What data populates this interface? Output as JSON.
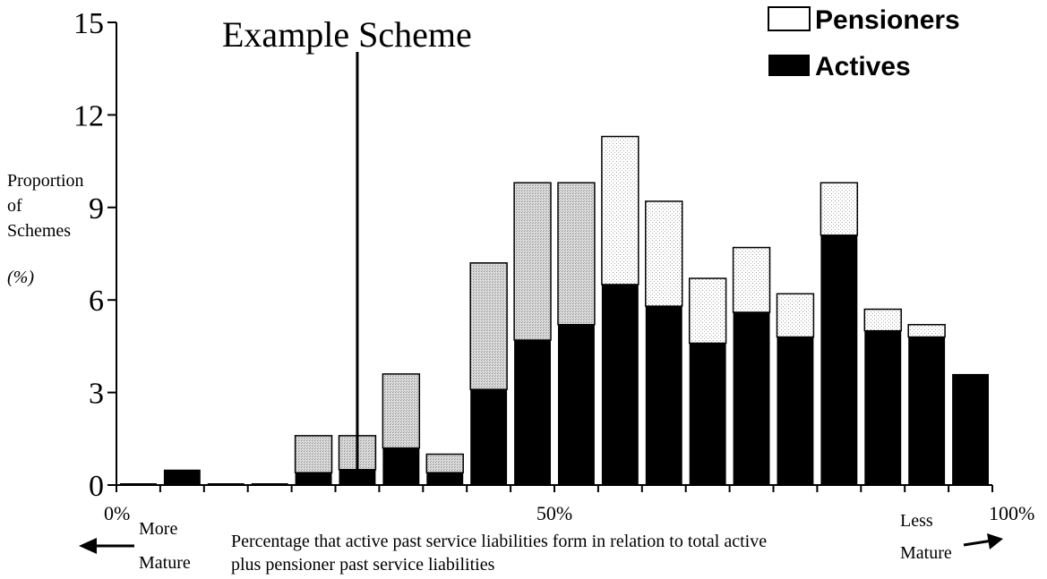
{
  "chart_data": {
    "type": "bar",
    "stacked": true,
    "annotation": "Example Scheme",
    "ylabel": [
      "Proportion",
      "of",
      "Schemes",
      "(%)"
    ],
    "xlabel": [
      "Percentage that active past service liabilities form in relation to total active",
      "plus pensioner past service liabilities"
    ],
    "ylim": [
      0,
      15
    ],
    "yticks": [
      0,
      3,
      6,
      9,
      12,
      15
    ],
    "xlim": [
      0,
      100
    ],
    "xtick_labels": [
      {
        "value": 0,
        "label": "0%"
      },
      {
        "value": 50,
        "label": "50%"
      },
      {
        "value": 100,
        "label": "100%"
      }
    ],
    "left_note": [
      "More",
      "Mature"
    ],
    "right_note": [
      "Less",
      "Mature"
    ],
    "legend_position": "top-right",
    "legend": [
      {
        "name": "Pensioners",
        "color": "#ffffff"
      },
      {
        "name": "Actives",
        "color": "#000000"
      }
    ],
    "bin_width": 5,
    "x": [
      2.5,
      7.5,
      12.5,
      17.5,
      22.5,
      27.5,
      32.5,
      37.5,
      42.5,
      47.5,
      52.5,
      57.5,
      62.5,
      67.5,
      72.5,
      77.5,
      82.5,
      87.5,
      92.5,
      97.5
    ],
    "series": [
      {
        "name": "Actives",
        "color": "#000000",
        "values": [
          0,
          0.5,
          0,
          0,
          0.4,
          0.5,
          1.2,
          0.4,
          3.1,
          4.7,
          5.2,
          6.5,
          5.8,
          4.6,
          5.6,
          4.8,
          8.1,
          5.0,
          4.8,
          3.6
        ]
      },
      {
        "name": "Pensioners",
        "color": "#ffffff",
        "values": [
          0,
          0,
          0,
          0,
          1.2,
          1.1,
          2.4,
          0.6,
          4.1,
          5.1,
          4.6,
          4.8,
          3.4,
          2.1,
          2.1,
          1.4,
          1.7,
          0.7,
          0.4,
          0
        ]
      }
    ],
    "scheme_marker_x": 27.5
  }
}
